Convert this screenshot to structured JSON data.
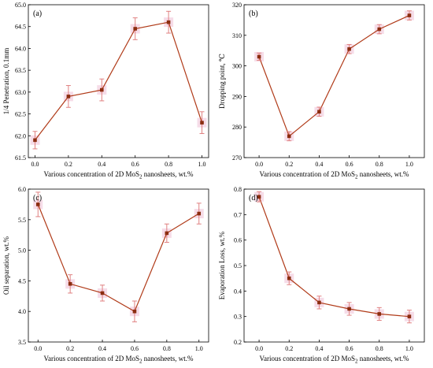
{
  "colors": {
    "line": "#b03a18",
    "marker": "#8b2d10",
    "error_bar": "#e08080",
    "halo": "#f4d6e4",
    "axis": "#000000"
  },
  "chart_data": [
    {
      "type": "line",
      "panel_label": "(a)",
      "title": "",
      "xlabel": {
        "pre": "Various concentration of 2D MoS",
        "sub": "2",
        "post": " nanosheets, wt.%"
      },
      "ylabel": "1/4 Penetration, 0.1mm",
      "x": [
        0.0,
        0.2,
        0.4,
        0.6,
        0.8,
        1.0
      ],
      "values": [
        61.9,
        62.9,
        63.05,
        64.45,
        64.6,
        62.3
      ],
      "errors": [
        0.2,
        0.25,
        0.25,
        0.25,
        0.25,
        0.25
      ],
      "xlim": [
        -0.04,
        1.04
      ],
      "ylim": [
        61.5,
        65.0
      ],
      "xticks": [
        "0.0",
        "0.2",
        "0.4",
        "0.6",
        "0.8",
        "1.0"
      ],
      "yticks": [
        "61.5",
        "62.0",
        "62.5",
        "63.0",
        "63.5",
        "64.0",
        "64.5",
        "65.0"
      ],
      "ytick_values": [
        61.5,
        62.0,
        62.5,
        63.0,
        63.5,
        64.0,
        64.5,
        65.0
      ]
    },
    {
      "type": "line",
      "panel_label": "(b)",
      "title": "",
      "xlabel": {
        "pre": "Various concentration of 2D MoS",
        "sub": "2",
        "post": " nanosheets, wt.%"
      },
      "ylabel": "Dropping point, ℃",
      "x": [
        0.0,
        0.2,
        0.4,
        0.6,
        0.8,
        1.0
      ],
      "values": [
        303,
        277,
        285,
        305.5,
        312,
        316.5
      ],
      "errors": [
        1.2,
        1.5,
        1.5,
        1.5,
        1.5,
        1.5
      ],
      "xlim": [
        -0.1,
        1.1
      ],
      "ylim": [
        270,
        320
      ],
      "xticks": [
        "0.0",
        "0.2",
        "0.4",
        "0.6",
        "0.8",
        "1.0"
      ],
      "yticks": [
        "270",
        "280",
        "290",
        "300",
        "310",
        "320"
      ],
      "ytick_values": [
        270,
        280,
        290,
        300,
        310,
        320
      ]
    },
    {
      "type": "line",
      "panel_label": "(c)",
      "title": "",
      "xlabel": {
        "pre": "Various concentration of 2D MoS",
        "sub": "2",
        "post": " nanosheets, wt.%"
      },
      "ylabel": "Oil separation, wt.%",
      "x": [
        0.0,
        0.2,
        0.4,
        0.6,
        0.8,
        1.0
      ],
      "values": [
        5.75,
        4.45,
        4.3,
        4.0,
        5.28,
        5.6
      ],
      "errors": [
        0.2,
        0.15,
        0.13,
        0.17,
        0.15,
        0.17
      ],
      "xlim": [
        -0.06,
        1.06
      ],
      "ylim": [
        3.5,
        6.0
      ],
      "xticks": [
        "0.0",
        "0.2",
        "0.4",
        "0.6",
        "0.8",
        "1.0"
      ],
      "yticks": [
        "3.5",
        "4.0",
        "4.5",
        "5.0",
        "5.5",
        "6.0"
      ],
      "ytick_values": [
        3.5,
        4.0,
        4.5,
        5.0,
        5.5,
        6.0
      ]
    },
    {
      "type": "line",
      "panel_label": "(d)",
      "title": "",
      "xlabel": {
        "pre": "Various concentration of 2D MoS",
        "sub": "2",
        "post": " nanosheets, wt.%"
      },
      "ylabel": "Evaporation Loss, wt.%",
      "x": [
        0.0,
        0.2,
        0.4,
        0.6,
        0.8,
        1.0
      ],
      "values": [
        0.77,
        0.45,
        0.355,
        0.33,
        0.31,
        0.3
      ],
      "errors": [
        0.02,
        0.025,
        0.025,
        0.025,
        0.025,
        0.025
      ],
      "xlim": [
        -0.1,
        1.1
      ],
      "ylim": [
        0.2,
        0.8
      ],
      "xticks": [
        "0.0",
        "0.2",
        "0.4",
        "0.6",
        "0.8",
        "1.0"
      ],
      "yticks": [
        "0.2",
        "0.3",
        "0.4",
        "0.5",
        "0.6",
        "0.7",
        "0.8"
      ],
      "ytick_values": [
        0.2,
        0.3,
        0.4,
        0.5,
        0.6,
        0.7,
        0.8
      ]
    }
  ]
}
